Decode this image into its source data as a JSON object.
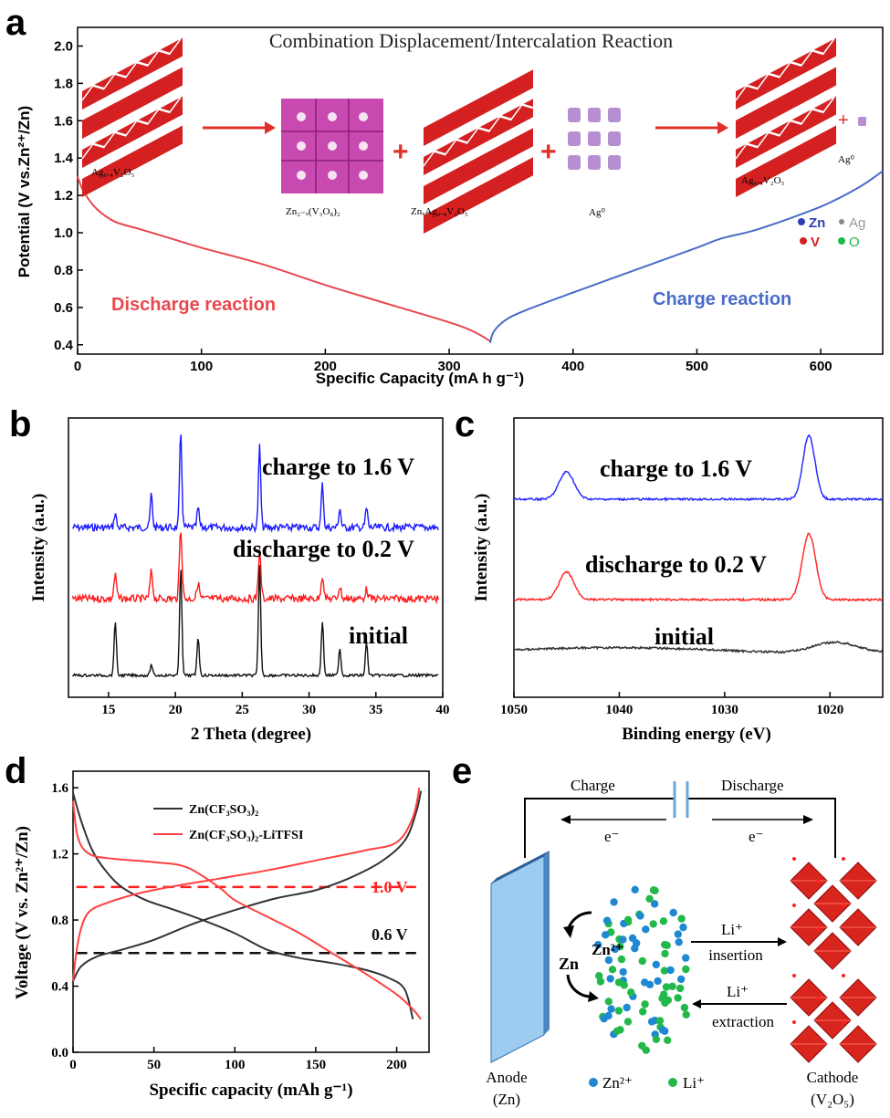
{
  "panel_labels": [
    "a",
    "b",
    "c",
    "d",
    "e"
  ],
  "chart_data": [
    {
      "panel": "a",
      "type": "line",
      "title": "Combination Displacement/Intercalation Reaction",
      "xlabel": "Specific Capacity (mA h g⁻¹)",
      "ylabel": "Potential (V vs.Zn²⁺/Zn)",
      "xlim": [
        0,
        650
      ],
      "ylim": [
        0.35,
        2.1
      ],
      "xticks": [
        0,
        100,
        200,
        300,
        400,
        500,
        600
      ],
      "yticks": [
        0.4,
        0.6,
        0.8,
        1.0,
        1.2,
        1.4,
        1.6,
        1.8,
        2.0
      ],
      "series": [
        {
          "name": "Discharge reaction",
          "color": "#e8474d",
          "x": [
            0,
            5,
            15,
            30,
            50,
            75,
            100,
            150,
            200,
            250,
            300,
            320,
            333
          ],
          "y": [
            1.3,
            1.22,
            1.13,
            1.06,
            1.02,
            0.97,
            0.92,
            0.83,
            0.72,
            0.62,
            0.52,
            0.47,
            0.42
          ]
        },
        {
          "name": "Charge reaction",
          "color": "#4a6cc8",
          "x": [
            333,
            336,
            345,
            360,
            400,
            450,
            500,
            520,
            550,
            600,
            630,
            650
          ],
          "y": [
            0.41,
            0.47,
            0.53,
            0.58,
            0.68,
            0.8,
            0.92,
            0.97,
            1.02,
            1.14,
            1.24,
            1.33
          ]
        }
      ],
      "schematic_labels": [
        "Ag₀.₄V₂O₅",
        "Zn₂₋ₓ(V₃O₈)₂",
        "ZnₓAg₀.₄V₂O₅",
        "Ag⁰",
        "Ag₀.₄V₂O₅",
        "Ag⁰"
      ],
      "element_legend": [
        "Zn",
        "Ag",
        "V",
        "O"
      ]
    },
    {
      "panel": "b",
      "type": "line",
      "xlabel": "2 Theta (degree)",
      "ylabel": "Intensity (a.u.)",
      "xlim": [
        12,
        40
      ],
      "xticks": [
        15,
        20,
        25,
        30,
        35,
        40
      ],
      "peaks": [
        15.5,
        18.2,
        20.4,
        21.7,
        26.3,
        31.0,
        32.3,
        34.3
      ],
      "series": [
        {
          "name": "charge to 1.6 V",
          "color": "#1a1aff",
          "peak_heights": [
            0.15,
            0.35,
            1.0,
            0.2,
            0.85,
            0.45,
            0.2,
            0.2
          ]
        },
        {
          "name": "discharge to 0.2 V",
          "color": "#ff1a1a",
          "peak_heights": [
            0.3,
            0.35,
            0.9,
            0.2,
            0.6,
            0.3,
            0.15,
            0.12
          ]
        },
        {
          "name": "initial",
          "color": "#111111",
          "peak_heights": [
            0.5,
            0.1,
            1.0,
            0.35,
            1.0,
            0.5,
            0.25,
            0.3
          ]
        }
      ]
    },
    {
      "panel": "c",
      "type": "line",
      "xlabel": "Binding energy (eV)",
      "ylabel": "Intensity (a.u.)",
      "xlim": [
        1050,
        1015
      ],
      "xticks": [
        1050,
        1040,
        1030,
        1020
      ],
      "series": [
        {
          "name": "charge to 1.6 V",
          "color": "#2b2bff",
          "peaks_eV": [
            1045,
            1022
          ]
        },
        {
          "name": "discharge to 0.2 V",
          "color": "#ff2b2b",
          "peaks_eV": [
            1045,
            1022
          ]
        },
        {
          "name": "initial",
          "color": "#333333",
          "peaks_eV": [
            1020
          ]
        }
      ]
    },
    {
      "panel": "d",
      "type": "line",
      "xlabel": "Specific capacity (mAh g⁻¹)",
      "ylabel": "Voltage (V vs. Zn²⁺/Zn)",
      "xlim": [
        0,
        220
      ],
      "ylim": [
        0.0,
        1.7
      ],
      "xticks": [
        0,
        50,
        100,
        150,
        200
      ],
      "yticks": [
        0.0,
        0.4,
        0.8,
        1.2,
        1.6
      ],
      "legend_position": "top-right",
      "series": [
        {
          "name": "Zn(CF₃SO₃)₂",
          "color": "#333333",
          "discharge": {
            "x": [
              0,
              5,
              12,
              20,
              30,
              45,
              60,
              80,
              100,
              120,
              140,
              160,
              180,
              195,
              205,
              210
            ],
            "y": [
              1.57,
              1.4,
              1.22,
              1.1,
              1.0,
              0.92,
              0.87,
              0.8,
              0.72,
              0.62,
              0.57,
              0.54,
              0.5,
              0.45,
              0.38,
              0.2
            ]
          },
          "charge": {
            "x": [
              0,
              5,
              15,
              30,
              50,
              75,
              100,
              125,
              150,
              170,
              190,
              205,
              212,
              215
            ],
            "y": [
              0.43,
              0.52,
              0.58,
              0.62,
              0.68,
              0.78,
              0.86,
              0.93,
              0.98,
              1.05,
              1.15,
              1.28,
              1.45,
              1.58
            ]
          }
        },
        {
          "name": "Zn(CF₃SO₃)₂-LiTFSI",
          "color": "#ff4040",
          "discharge": {
            "x": [
              0,
              3,
              10,
              25,
              50,
              70,
              90,
              100,
              120,
              140,
              160,
              180,
              200,
              210,
              215
            ],
            "y": [
              1.52,
              1.3,
              1.2,
              1.17,
              1.15,
              1.12,
              1.0,
              0.92,
              0.82,
              0.72,
              0.6,
              0.48,
              0.35,
              0.26,
              0.2
            ]
          },
          "charge": {
            "x": [
              0,
              2,
              5,
              10,
              20,
              40,
              60,
              90,
              120,
              150,
              180,
              200,
              210,
              214
            ],
            "y": [
              0.43,
              0.6,
              0.75,
              0.85,
              0.9,
              0.96,
              1.0,
              1.05,
              1.1,
              1.16,
              1.22,
              1.27,
              1.42,
              1.6
            ]
          }
        }
      ],
      "reference_lines": [
        {
          "label": "1.0 V",
          "y": 1.0,
          "color": "#ff2020"
        },
        {
          "label": "0.6 V",
          "y": 0.6,
          "color": "#111111"
        }
      ]
    }
  ],
  "panel_e": {
    "charge": "Charge",
    "discharge": "Discharge",
    "electron_left": "e⁻",
    "electron_right": "e⁻",
    "anode": "Anode",
    "anode_sub": "(Zn)",
    "cathode": "Cathode",
    "cathode_sub": "(V₂O₅)",
    "zn": "Zn",
    "zn2": "Zn²⁺",
    "li_top": "Li⁺",
    "insertion": "insertion",
    "li_bottom": "Li⁺",
    "extraction": "extraction",
    "legend_zn": "Zn²⁺",
    "legend_li": "Li⁺",
    "colors": {
      "zn_ion": "#1e88d2",
      "li_ion": "#22b84a",
      "anode": "#9ecbf0",
      "cathode": "#d8261e"
    }
  }
}
